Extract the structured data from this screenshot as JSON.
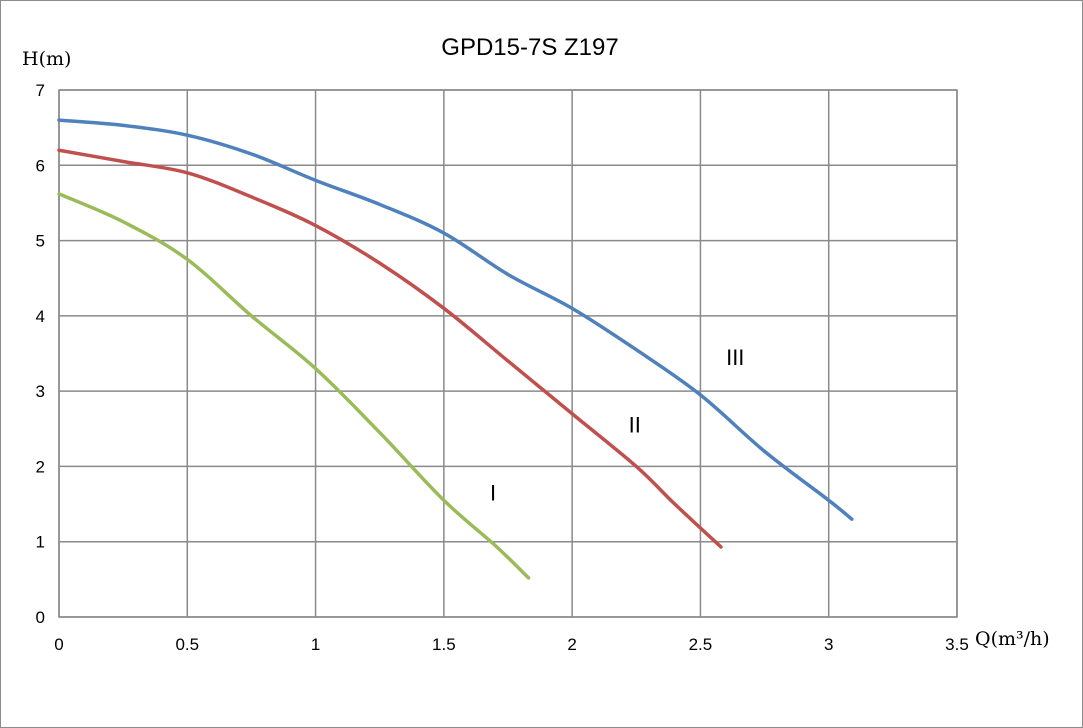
{
  "chart_data": {
    "type": "line",
    "title": "GPD15-7S  Z197",
    "xlabel": "Q(m³/h)",
    "ylabel": "H(m)",
    "xlim": [
      0,
      3.5
    ],
    "ylim": [
      0,
      7
    ],
    "xticks": [
      "0",
      "0.5",
      "1",
      "1.5",
      "2",
      "2.5",
      "3",
      "3.5"
    ],
    "yticks": [
      "0",
      "1",
      "2",
      "3",
      "4",
      "5",
      "6",
      "7"
    ],
    "grid": true,
    "series": [
      {
        "name": "I",
        "color": "#9bbb59",
        "label_at": [
          1.68,
          1.55
        ],
        "points": [
          [
            0,
            5.62
          ],
          [
            0.25,
            5.25
          ],
          [
            0.5,
            4.75
          ],
          [
            0.75,
            4.0
          ],
          [
            1.0,
            3.3
          ],
          [
            1.25,
            2.45
          ],
          [
            1.5,
            1.55
          ],
          [
            1.7,
            0.95
          ],
          [
            1.83,
            0.52
          ]
        ]
      },
      {
        "name": "II",
        "color": "#c0504d",
        "label_at": [
          2.22,
          2.45
        ],
        "points": [
          [
            0,
            6.2
          ],
          [
            0.25,
            6.05
          ],
          [
            0.5,
            5.9
          ],
          [
            0.75,
            5.58
          ],
          [
            1.0,
            5.2
          ],
          [
            1.25,
            4.7
          ],
          [
            1.5,
            4.1
          ],
          [
            1.75,
            3.4
          ],
          [
            2.0,
            2.7
          ],
          [
            2.25,
            2.0
          ],
          [
            2.4,
            1.5
          ],
          [
            2.58,
            0.93
          ]
        ]
      },
      {
        "name": "III",
        "color": "#4f81bd",
        "label_at": [
          2.6,
          3.35
        ],
        "points": [
          [
            0,
            6.6
          ],
          [
            0.25,
            6.53
          ],
          [
            0.5,
            6.4
          ],
          [
            0.75,
            6.15
          ],
          [
            1.0,
            5.8
          ],
          [
            1.25,
            5.48
          ],
          [
            1.5,
            5.1
          ],
          [
            1.75,
            4.55
          ],
          [
            2.0,
            4.1
          ],
          [
            2.25,
            3.55
          ],
          [
            2.5,
            2.95
          ],
          [
            2.75,
            2.2
          ],
          [
            3.0,
            1.55
          ],
          [
            3.09,
            1.3
          ]
        ]
      }
    ]
  }
}
